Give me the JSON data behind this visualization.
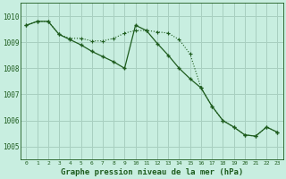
{
  "title": "Graphe pression niveau de la mer (hPa)",
  "bg_color": "#c8eee0",
  "grid_color": "#a8cfc0",
  "line_color": "#1e5c1e",
  "ylim": [
    1004.5,
    1010.5
  ],
  "xlim": [
    -0.5,
    23.5
  ],
  "yticks": [
    1005,
    1006,
    1007,
    1008,
    1009,
    1010
  ],
  "xticks": [
    0,
    1,
    2,
    3,
    4,
    5,
    6,
    7,
    8,
    9,
    10,
    11,
    12,
    13,
    14,
    15,
    16,
    17,
    18,
    19,
    20,
    21,
    22,
    23
  ],
  "series1_x": [
    0,
    1,
    2,
    3,
    4,
    5,
    6,
    7,
    8,
    9,
    10,
    11,
    12,
    13,
    14,
    15,
    16,
    17,
    18,
    19,
    20,
    21,
    22,
    23
  ],
  "series1_y": [
    1009.65,
    1009.8,
    1009.8,
    1009.3,
    1009.15,
    1009.15,
    1009.05,
    1009.05,
    1009.15,
    1009.35,
    1009.45,
    1009.45,
    1009.4,
    1009.35,
    1009.1,
    1008.55,
    1007.25,
    1006.55,
    1006.0,
    1005.75,
    1005.45,
    1005.4,
    1005.75,
    1005.55
  ],
  "series2_x": [
    0,
    1,
    2,
    3,
    4,
    5,
    6,
    7,
    8,
    9,
    10,
    11,
    12,
    13,
    14,
    15,
    16,
    17,
    18,
    19,
    20,
    21,
    22,
    23
  ],
  "series2_y": [
    1009.65,
    1009.8,
    1009.8,
    1009.3,
    1009.1,
    1008.9,
    1008.65,
    1008.45,
    1008.25,
    1008.0,
    1009.65,
    1009.45,
    1008.95,
    1008.5,
    1008.0,
    1007.6,
    1007.25,
    1006.55,
    1006.0,
    1005.75,
    1005.45,
    1005.4,
    1005.75,
    1005.55
  ]
}
